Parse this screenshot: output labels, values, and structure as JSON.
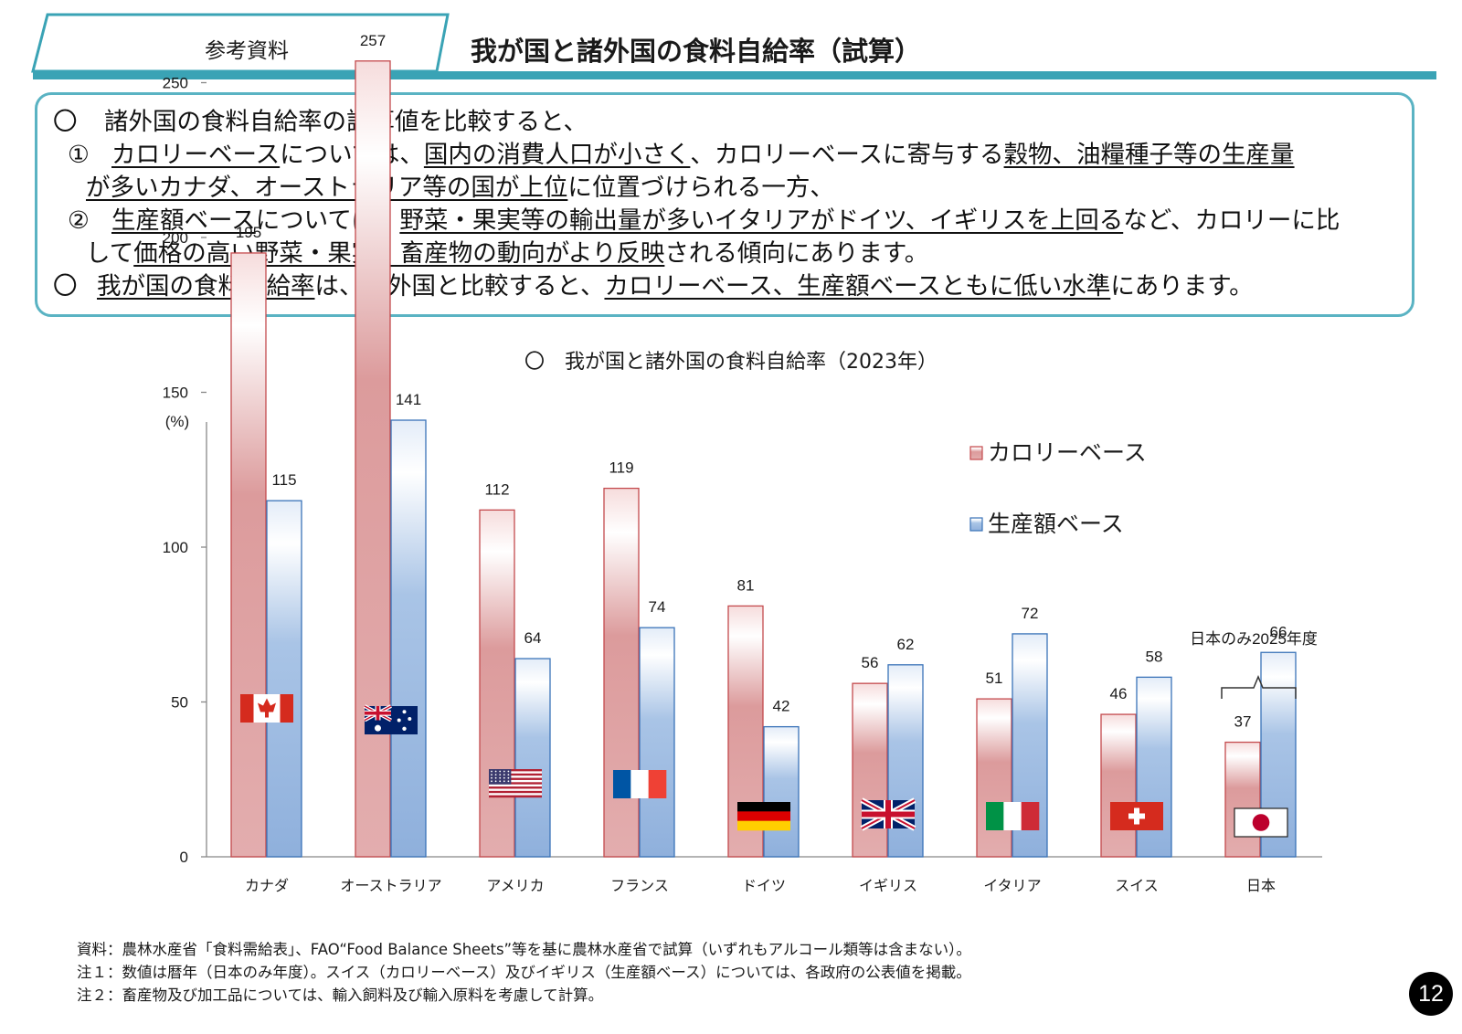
{
  "header": {
    "tab_label": "参考資料",
    "title": "我が国と諸外国の食料自給率（試算）"
  },
  "summary": {
    "l1": {
      "bullet": "〇",
      "text": "諸外国の食料自給率の試算値を比較すると、"
    },
    "l2": {
      "bullet": "①",
      "u1": "カロリーベース",
      "t1": "については、",
      "u2": "国内の消費人口が小さく",
      "t2": "、カロリーベースに寄与する",
      "u3": "穀物、油糧種子等の生産量"
    },
    "l3": {
      "u1": "が多いカナダ、オーストラリア等の国が上位",
      "t1": "に位置づけられる一方、"
    },
    "l4": {
      "bullet": "②",
      "u1": "生産額ベース",
      "t1": "については、",
      "u2": "野菜・果実等の輸出量が多いイタリアがドイツ、イギリスを上回る",
      "t2": "など、カロリーに比"
    },
    "l5": {
      "t1": "して",
      "u1": "価格の高い野菜・果実、畜産物の動向がより反映",
      "t2": "される傾向にあります。"
    },
    "l6": {
      "bullet": "〇",
      "u1": "我が国の食料自給率",
      "t1": "は、諸外国と比較すると、",
      "u2": "カロリーベース、生産額ベースともに低い水準",
      "t2": "にあります。"
    }
  },
  "chart_heading": "〇　我が国と諸外国の食料自給率（2023年）",
  "colors": {
    "calorie_fill": "#d98c8e",
    "calorie_stroke": "#c44a4d",
    "production_fill": "#8db1dd",
    "production_stroke": "#3a73b8",
    "teal": "#3aa3b5"
  },
  "chart_data": {
    "type": "bar",
    "title": "〇　我が国と諸外国の食料自給率（2023年）",
    "ylabel": "(%)",
    "ylim": [
      0,
      280
    ],
    "yticks": [
      0,
      50,
      100,
      150,
      200,
      250
    ],
    "grid": false,
    "legend_position": "top-right",
    "categories": [
      "カナダ",
      "オーストラリア",
      "アメリカ",
      "フランス",
      "ドイツ",
      "イギリス",
      "イタリア",
      "スイス",
      "日本"
    ],
    "series": [
      {
        "name": "カロリーベース",
        "values": [
          195,
          257,
          112,
          119,
          81,
          56,
          51,
          46,
          37
        ]
      },
      {
        "name": "生産額ベース",
        "values": [
          115,
          141,
          64,
          74,
          42,
          62,
          72,
          58,
          66
        ]
      }
    ],
    "flags": [
      "canada",
      "australia",
      "usa",
      "france",
      "germany",
      "uk",
      "italy",
      "switzerland",
      "japan"
    ],
    "annotation": "日本のみ2025年度"
  },
  "footnotes": [
    "資料：農林水産省「食料需給表」、FAO“Food Balance Sheets”等を基に農林水産省で試算（いずれもアルコール類等は含まない）。",
    "注１：数値は暦年（日本のみ年度）。スイス（カロリーベース）及びイギリス（生産額ベース）については、各政府の公表値を掲載。",
    "注２：畜産物及び加工品については、輸入飼料及び輸入原料を考慮して計算。"
  ],
  "page_number": "12"
}
